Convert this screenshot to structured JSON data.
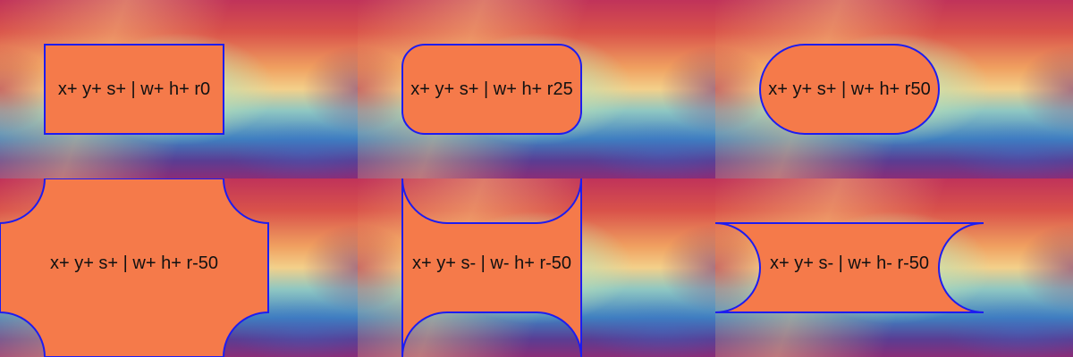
{
  "colors": {
    "shape_fill": "#f57a4a",
    "shape_stroke": "#1d1cf0",
    "text": "#111111"
  },
  "tiles": [
    {
      "label": "x+ y+ s+ | w+ h+ r0",
      "radius": 0
    },
    {
      "label": "x+ y+ s+ | w+ h+ r25",
      "radius": 25
    },
    {
      "label": "x+ y+ s+ | w+ h+ r50",
      "radius": 50
    },
    {
      "label": "x+ y+ s+ | w+ h+ r-50",
      "radius": -50
    },
    {
      "label": "x+ y+ s- | w- h+ r-50",
      "radius": -50
    },
    {
      "label": "x+ y+ s- | w+ h- r-50",
      "radius": -50
    }
  ]
}
